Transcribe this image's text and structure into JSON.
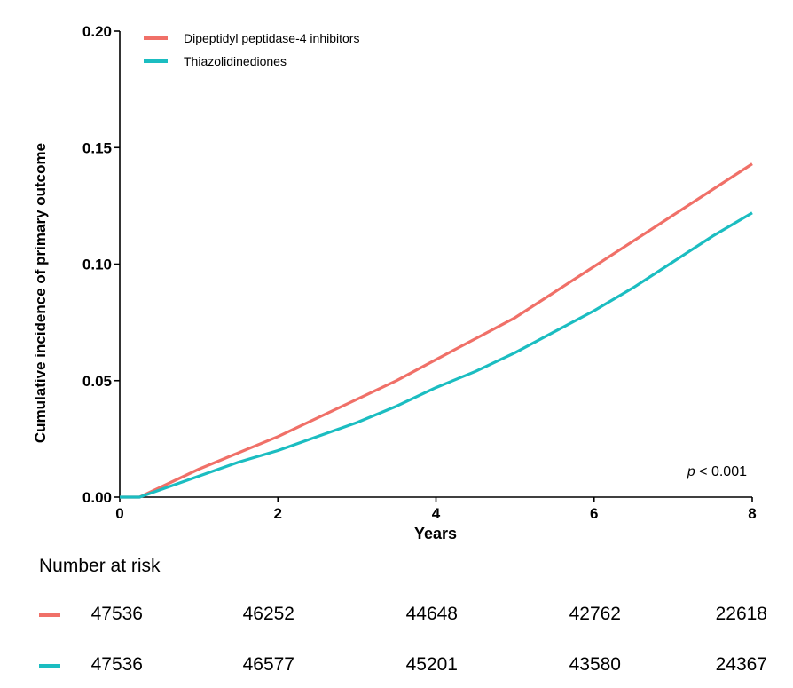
{
  "chart_data": {
    "type": "line",
    "xlabel": "Years",
    "ylabel": "Cumulative incidence of primary outcome",
    "xlim": [
      0,
      8
    ],
    "ylim": [
      0,
      0.2
    ],
    "x_ticks": [
      "0",
      "2",
      "4",
      "6",
      "8"
    ],
    "y_ticks": [
      "0.00",
      "0.05",
      "0.10",
      "0.15",
      "0.20"
    ],
    "legend_position": "top-left",
    "annotation": {
      "prefix": "p",
      "text": " < 0.001"
    },
    "series": [
      {
        "name": "Dipeptidyl peptidase-4 inhibitors",
        "color": "#F07068",
        "x": [
          0,
          0.25,
          0.5,
          1,
          1.5,
          2,
          2.5,
          3,
          3.5,
          4,
          4.5,
          5,
          5.5,
          6,
          6.5,
          7,
          7.5,
          8
        ],
        "y": [
          0,
          0,
          0.004,
          0.012,
          0.019,
          0.026,
          0.034,
          0.042,
          0.05,
          0.059,
          0.068,
          0.077,
          0.088,
          0.099,
          0.11,
          0.121,
          0.132,
          0.143
        ]
      },
      {
        "name": "Thiazolidinediones",
        "color": "#1BBDC1",
        "x": [
          0,
          0.25,
          0.5,
          1,
          1.5,
          2,
          2.5,
          3,
          3.5,
          4,
          4.5,
          5,
          5.5,
          6,
          6.5,
          7,
          7.5,
          8
        ],
        "y": [
          0,
          0,
          0.003,
          0.009,
          0.015,
          0.02,
          0.026,
          0.032,
          0.039,
          0.047,
          0.054,
          0.062,
          0.071,
          0.08,
          0.09,
          0.101,
          0.112,
          0.122
        ]
      }
    ],
    "risk_table": {
      "title": "Number at risk",
      "rows": [
        {
          "color": "#F07068",
          "values": [
            "47536",
            "46252",
            "44648",
            "42762",
            "22618"
          ]
        },
        {
          "color": "#1BBDC1",
          "values": [
            "47536",
            "46577",
            "45201",
            "43580",
            "24367"
          ]
        }
      ]
    }
  }
}
